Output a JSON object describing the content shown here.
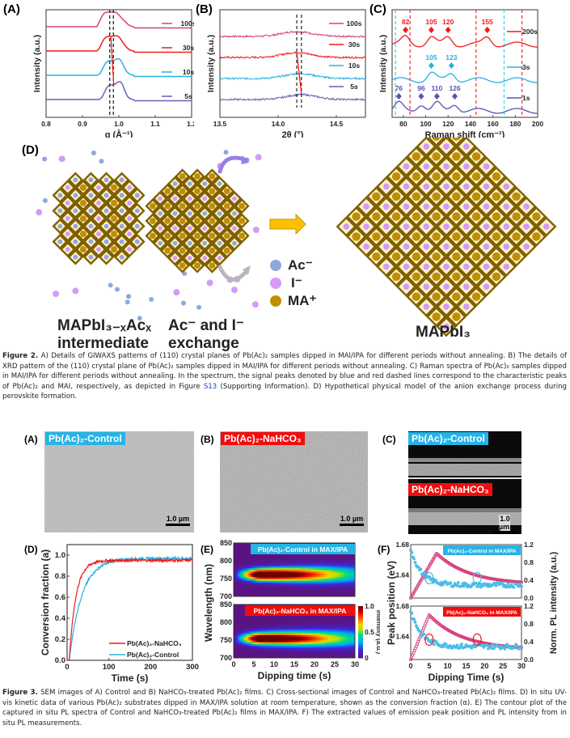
{
  "figure2": {
    "panel_labels": {
      "a": "(A)",
      "b": "(B)",
      "c": "(C)",
      "d": "(D)"
    },
    "caption": {
      "lead": "Figure 2.",
      "text1": " A) Details of GIWAXS patterns of (110) crystal planes of Pb(Ac)₂ samples dipped in MAI/IPA for different periods without annealing. B) The details of XRD pattern of the (110) crystal plane of Pb(Ac)₂ samples dipped in MAI/IPA for different periods without annealing. C) Raman spectra of Pb(Ac)₂ samples dipped in MAI/IPA for different periods without annealing. In the spectrum, the signal peaks denoted by blue and red dashed lines correspond to the characteristic peaks of Pb(Ac)₂ and MAI, respectively, as depicted in Figure ",
      "link": "S13",
      "text2": " (Supporting Information). D) Hypothetical physical model of the anion exchange process during perovskite formation."
    },
    "schematic": {
      "label_intermediate_1": "MAPbI₃₋ₓAcₓ",
      "label_intermediate_2": "intermediate",
      "label_exchange_1": "Ac⁻ and I⁻",
      "label_exchange_2": "exchange",
      "label_final": "MAPbI₃",
      "legend": [
        {
          "label": "Ac⁻",
          "color": "#8eaadb"
        },
        {
          "label": "I⁻",
          "color": "#d59bf6"
        },
        {
          "label": "MA⁺",
          "color": "#bf8f00"
        }
      ],
      "frame_color": "#7f6000",
      "cell_fill": "#fff2cc",
      "arrow_color": "#ffc000"
    }
  },
  "figure3": {
    "panel_labels": {
      "a": "(A)",
      "b": "(B)",
      "c": "(C)",
      "d": "(D)",
      "e": "(E)",
      "f": "(F)"
    },
    "sem": {
      "tag_control": "Pb(Ac)₂-Control",
      "tag_nahco3": "Pb(Ac)₂-NaHCO₃",
      "scale_bar": "1.0 µm"
    },
    "caption": {
      "lead": "Figure 3.",
      "text": " SEM images of A) Control and B) NaHCO₃-treated Pb(Ac)₂ films. C) Cross-sectional images of Control and NaHCO₃-treated Pb(Ac)₂ films. D) In situ UV-vis kinetic data of various Pb(Ac)₂ substrates dipped in MAX/IPA solution at room temperature, shown as the conversion fraction (α). E) The contour plot of the captured in situ PL spectra of Control and NaHCO₃-treated Pb(Ac)₂ films in MAX/IPA. F) The extracted values of emission peak position and PL intensity from in situ PL measurements."
    },
    "colors": {
      "control": "#26b3e6",
      "nahco3": "#f20c0c"
    }
  },
  "chart_data": [
    {
      "id": "fig2A",
      "type": "line",
      "title": "",
      "xlabel": "q (Å⁻¹)",
      "ylabel": "Intensity (a.u.)",
      "xlim": [
        0.8,
        1.2
      ],
      "xticks": [
        0.8,
        0.9,
        1.0,
        1.1,
        1.2
      ],
      "xtick_labels": [
        "0.8",
        "0.9",
        "1.0",
        "1.1",
        "1.2"
      ],
      "dashed_lines_x": [
        0.975,
        0.985
      ],
      "legend_placement": "right",
      "series": [
        {
          "name": "100s",
          "color": "#d6417e",
          "offset": 3,
          "peak": 0.975
        },
        {
          "name": "30s",
          "color": "#ee1c1c",
          "offset": 2,
          "peak": 0.978
        },
        {
          "name": "10s",
          "color": "#28b0e0",
          "offset": 1,
          "peak": 0.982
        },
        {
          "name": "5s",
          "color": "#6a5fb5",
          "offset": 0,
          "peak": 0.986
        }
      ]
    },
    {
      "id": "fig2B",
      "type": "line",
      "title": "",
      "xlabel": "2θ (°)",
      "ylabel": "Intensity (a.u.)",
      "xlim": [
        13.5,
        14.75
      ],
      "xticks": [
        13.5,
        14.0,
        14.5
      ],
      "xtick_labels": [
        "13.5",
        "14.0",
        "14.5"
      ],
      "dashed_lines_x": [
        14.16,
        14.2
      ],
      "legend_placement": "right",
      "series": [
        {
          "name": "100s",
          "color": "#d6417e",
          "offset": 3,
          "peak": 14.16
        },
        {
          "name": "30s",
          "color": "#ee1c1c",
          "offset": 2,
          "peak": 14.16
        },
        {
          "name": "10s",
          "color": "#28b0e0",
          "offset": 1,
          "peak": 14.19
        },
        {
          "name": "5s",
          "color": "#6a5fb5",
          "offset": 0,
          "peak": 14.2
        }
      ]
    },
    {
      "id": "fig2C",
      "type": "line",
      "title": "",
      "xlabel": "Raman shift (cm⁻¹)",
      "ylabel": "Intensity (a.u.)",
      "xlim": [
        70,
        200
      ],
      "xticks": [
        80,
        100,
        120,
        140,
        160,
        180,
        200
      ],
      "xtick_labels": [
        "80",
        "100",
        "120",
        "140",
        "160",
        "180",
        "200"
      ],
      "blue_dashed_x": [
        73,
        170
      ],
      "red_dashed_x": [
        86,
        145,
        186
      ],
      "legend_placement": "right",
      "series": [
        {
          "name": "200s",
          "color": "#ee1c1c",
          "offset": 2,
          "peaks": [
            82,
            105,
            120,
            155
          ]
        },
        {
          "name": "3s",
          "color": "#28b0e0",
          "offset": 1,
          "peaks": [
            105,
            123
          ]
        },
        {
          "name": "1s",
          "color": "#5553b0",
          "offset": 0,
          "peaks": [
            76,
            96,
            110,
            126
          ]
        }
      ]
    },
    {
      "id": "fig3D",
      "type": "line",
      "title": "",
      "xlabel": "Time (s)",
      "ylabel": "Conversion fraction (a)",
      "xlim": [
        0,
        300
      ],
      "ylim": [
        0,
        1.1
      ],
      "xticks": [
        0,
        100,
        200,
        300
      ],
      "xtick_labels": [
        "0",
        "100",
        "200",
        "300"
      ],
      "yticks": [
        0,
        0.2,
        0.4,
        0.6,
        0.8,
        1.0
      ],
      "ytick_labels": [
        "0.0",
        "0.2",
        "0.4",
        "0.6",
        "0.8",
        "1.0"
      ],
      "legend_placement": "bottom-right",
      "series": [
        {
          "name": "Pb(Ac)₂-NaHCO₃",
          "color": "#ee1c1c",
          "plateau": 0.95,
          "tau": 16,
          "t0": 5
        },
        {
          "name": "Pb(Ac)₂-Control",
          "color": "#28b0e0",
          "plateau": 0.97,
          "tau": 30,
          "t0": 5
        }
      ]
    },
    {
      "id": "fig3E",
      "type": "heatmap",
      "title": "",
      "xlabel": "Dipping time (s)",
      "ylabel": "Wavelength (nm)",
      "xlim": [
        0,
        30
      ],
      "ylim": [
        700,
        850
      ],
      "xticks": [
        0,
        5,
        10,
        15,
        20,
        25,
        30
      ],
      "xtick_labels": [
        "0",
        "5",
        "10",
        "15",
        "20",
        "25",
        "30"
      ],
      "yticks": [
        700,
        750,
        800,
        850
      ],
      "ytick_labels": [
        "700",
        "750",
        "800",
        "850"
      ],
      "colorbar": {
        "label": "Intensity (a.u.)",
        "range": [
          0,
          1.0
        ],
        "ticks": [
          "0",
          "0.5",
          "1.0"
        ]
      },
      "subplots": [
        {
          "name": "Pb(Ac)₂-Control in MAX/IPA",
          "center_nm": 762,
          "peak_time": 6
        },
        {
          "name": "Pb(Ac)₂-NaHCO₃ in MAX/IPA",
          "center_nm": 755,
          "peak_time": 6
        }
      ]
    },
    {
      "id": "fig3F",
      "type": "scatter",
      "title": "",
      "xlabel": "Dipping Time (s)",
      "ylabel": "Peak position (eV)",
      "ylabel_right": "Norm. PL intensity (a.u.)",
      "xlim": [
        0,
        30
      ],
      "ylim_left": [
        1.61,
        1.68
      ],
      "ylim_right": [
        0,
        1.2
      ],
      "xticks": [
        0,
        5,
        10,
        15,
        20,
        25,
        30
      ],
      "xtick_labels": [
        "0",
        "5",
        "10",
        "15",
        "20",
        "25",
        "30"
      ],
      "yticks_left": [
        "1.64",
        "1.68"
      ],
      "yticks_right": [
        "0.0",
        "0.4",
        "0.8",
        "1.2"
      ],
      "subplots": [
        {
          "name": "Pb(Ac)₂-Control in MAX/IPA",
          "peak_position_start": 1.675,
          "peak_position_end": 1.627,
          "intensity_peak": 1.0,
          "intensity_peak_time": 7,
          "intensity_end": 0.3
        },
        {
          "name": "Pb(Ac)₂-NaHCO₃ in MAX/IPA",
          "peak_position_start": 1.675,
          "peak_position_end": 1.627,
          "intensity_peak": 1.0,
          "intensity_peak_time": 5,
          "intensity_end": 0.22
        }
      ]
    }
  ]
}
